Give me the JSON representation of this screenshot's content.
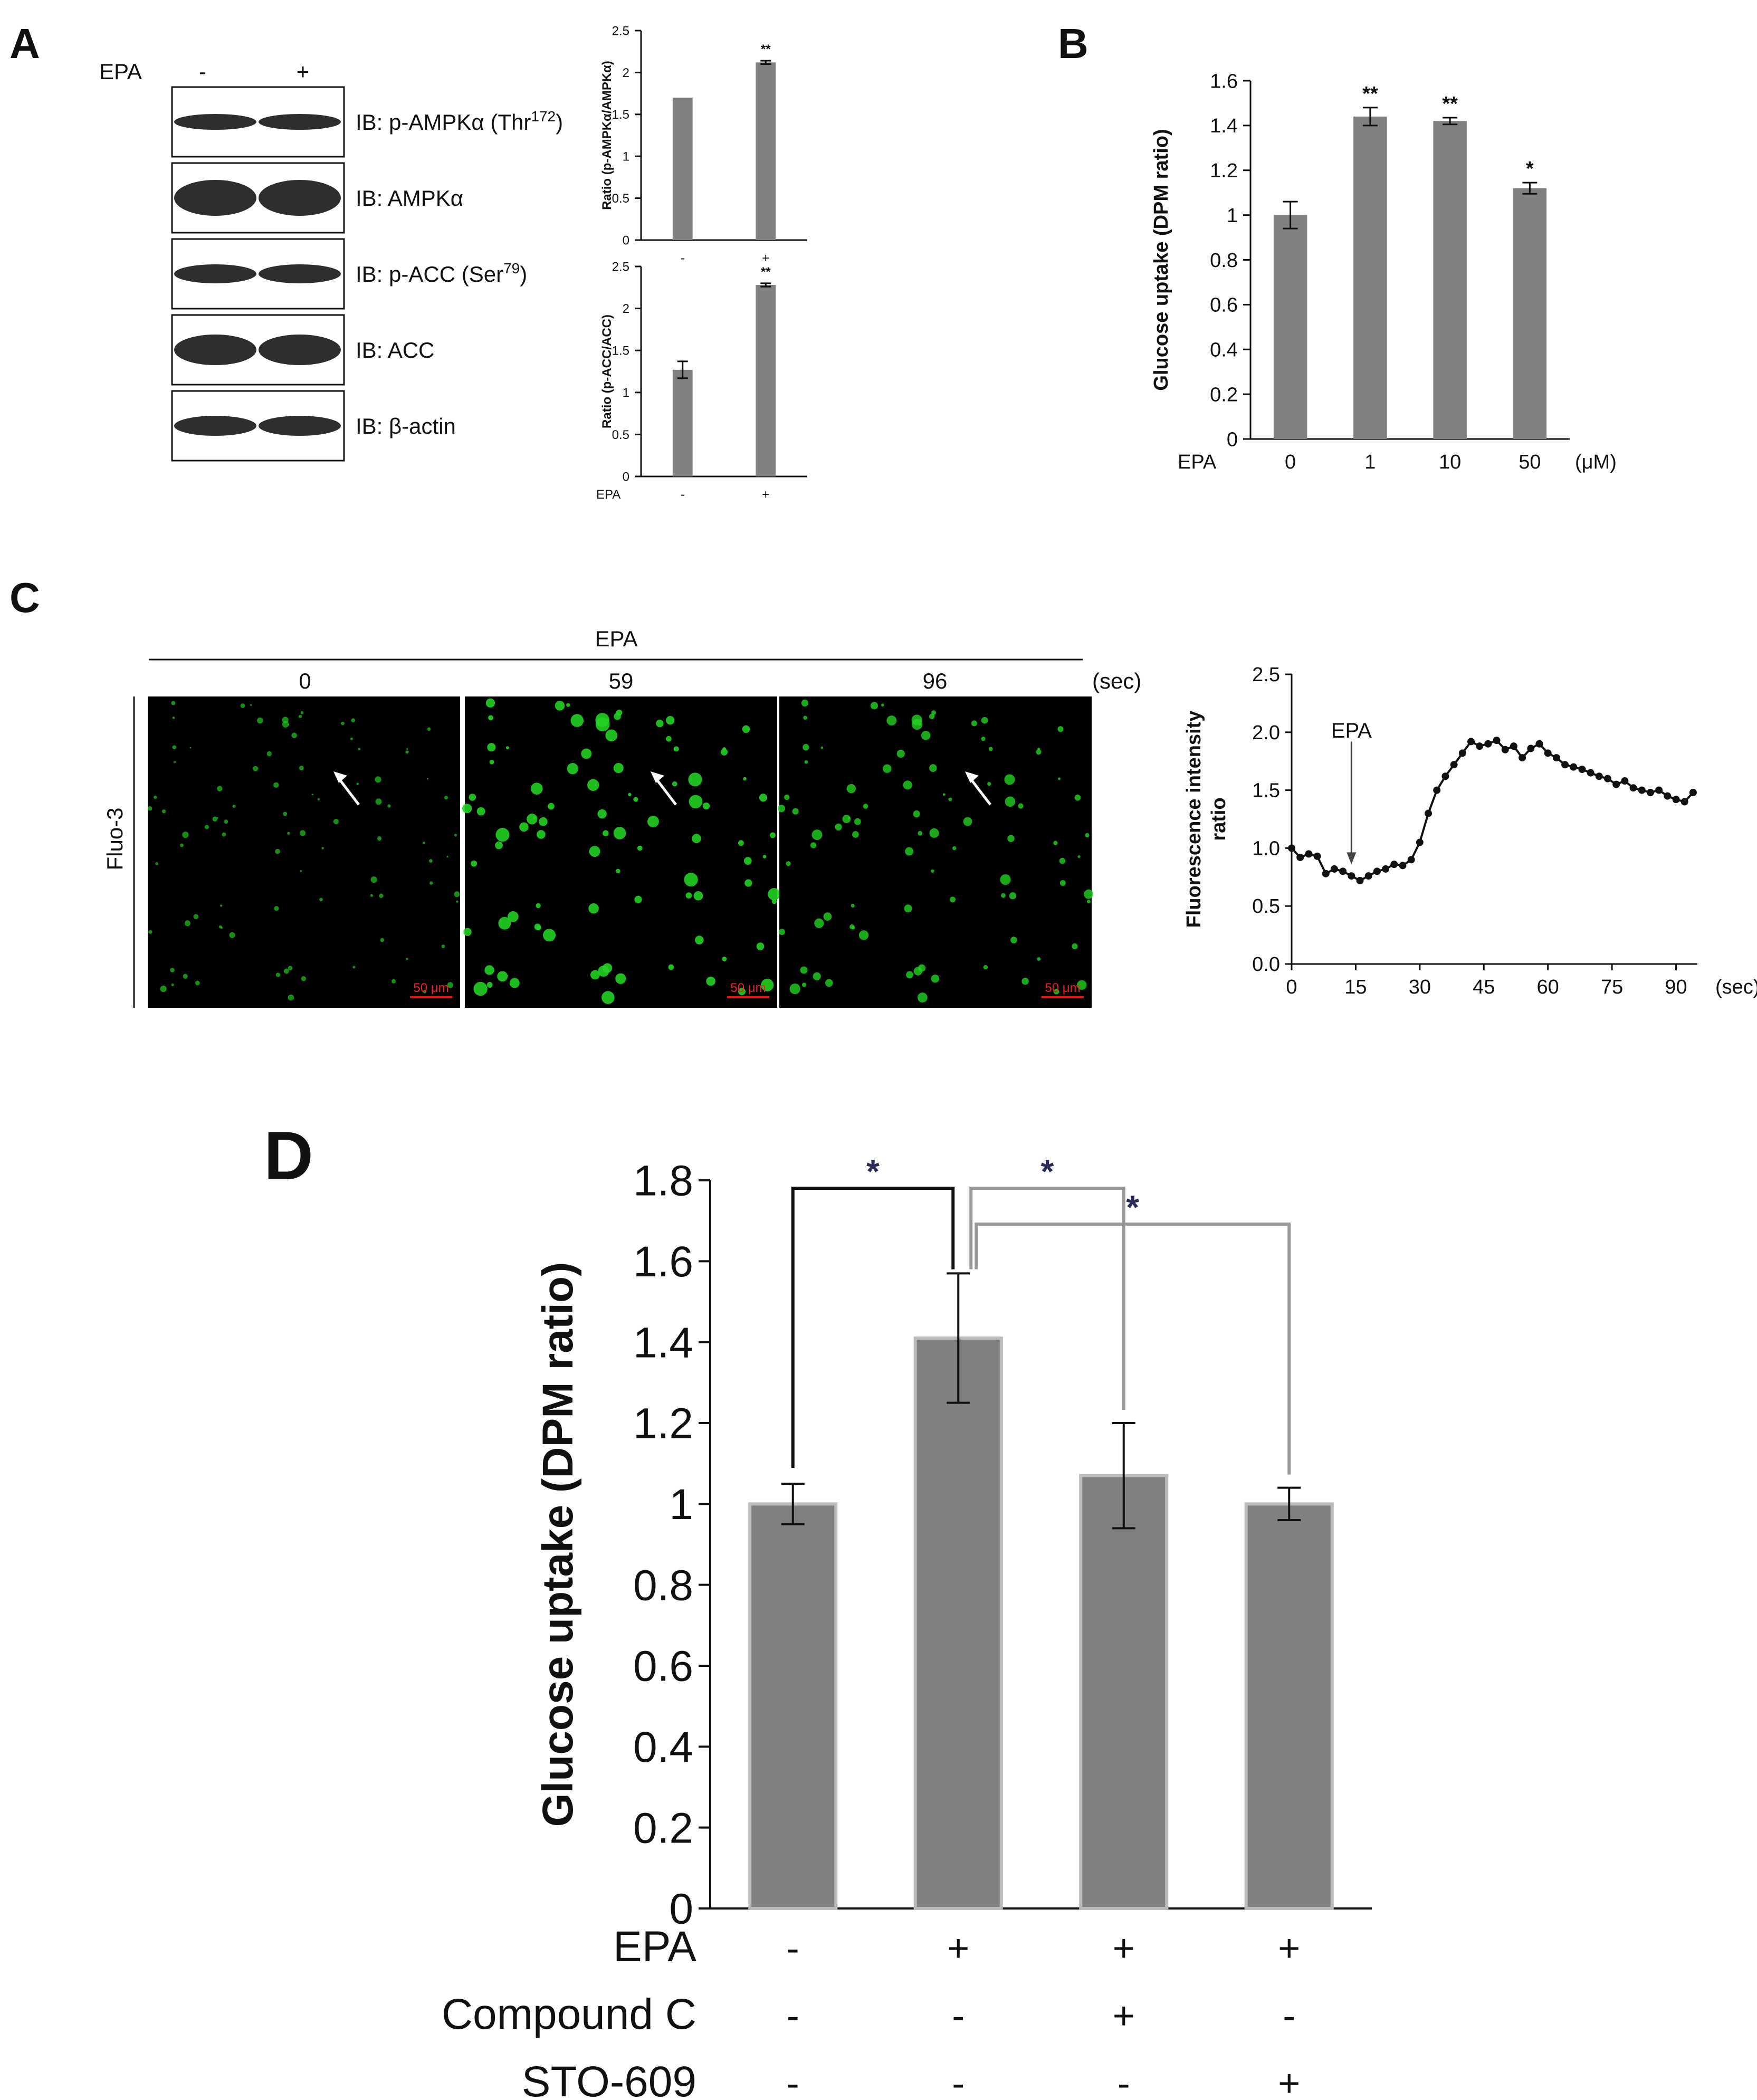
{
  "panels": {
    "a": "A",
    "b": "B",
    "c": "C",
    "d": "D"
  },
  "panel_a": {
    "epa_label": "EPA",
    "lane_labels": [
      "-",
      "+"
    ],
    "blots": [
      "IB: p-AMPKα (Thr172)",
      "IB: AMPKα",
      "IB: p-ACC (Ser79)",
      "IB: ACC",
      "IB: β-actin"
    ]
  },
  "panel_c": {
    "epa_label": "EPA",
    "times": [
      "0",
      "59",
      "96"
    ],
    "time_unit": "(sec)",
    "dye": "Fluo-3",
    "scale_bar": "50 μm"
  },
  "chart_data": [
    {
      "id": "A1",
      "type": "bar",
      "ylabel": "Ratio (p-AMPKα/AMPKα)",
      "categories": [
        "-",
        "+"
      ],
      "values": [
        1.7,
        2.12
      ],
      "errors": [
        0,
        0.02
      ],
      "significance": [
        "",
        "**"
      ],
      "ylim": [
        0,
        2.5
      ],
      "yticks": [
        "0",
        "0.5",
        "1",
        "1.5",
        "2",
        "2.5"
      ]
    },
    {
      "id": "A2",
      "type": "bar",
      "ylabel": "Ratio (p-ACC/ACC)",
      "xlabel": "EPA",
      "categories": [
        "-",
        "+"
      ],
      "values": [
        1.27,
        2.28
      ],
      "errors": [
        0.1,
        0.02
      ],
      "significance": [
        "",
        "**"
      ],
      "ylim": [
        0,
        2.5
      ],
      "yticks": [
        "0",
        "0.5",
        "1",
        "1.5",
        "2",
        "2.5"
      ]
    },
    {
      "id": "B",
      "type": "bar",
      "ylabel": "Glucose uptake (DPM ratio)",
      "xlabel": "EPA",
      "x_unit": "(μM)",
      "categories": [
        "0",
        "1",
        "10",
        "50"
      ],
      "values": [
        1.0,
        1.44,
        1.42,
        1.12
      ],
      "errors": [
        0.06,
        0.04,
        0.015,
        0.025
      ],
      "significance": [
        "",
        "**",
        "**",
        "*"
      ],
      "ylim": [
        0,
        1.6
      ],
      "yticks": [
        "0",
        "0.2",
        "0.4",
        "0.6",
        "0.8",
        "1",
        "1.2",
        "1.4",
        "1.6"
      ]
    },
    {
      "id": "C",
      "type": "line",
      "ylabel": "Fluorescence intensity ratio",
      "x_unit": "(sec)",
      "annotation": "EPA",
      "annotation_x": 14,
      "xlim": [
        0,
        95
      ],
      "ylim": [
        0,
        2.5
      ],
      "xticks": [
        "0",
        "15",
        "30",
        "45",
        "60",
        "75",
        "90"
      ],
      "yticks": [
        "0.0",
        "0.5",
        "1.0",
        "1.5",
        "2.0",
        "2.5"
      ],
      "x": [
        0,
        2,
        4,
        6,
        8,
        10,
        12,
        14,
        16,
        18,
        20,
        22,
        24,
        26,
        28,
        30,
        32,
        34,
        36,
        38,
        40,
        42,
        44,
        46,
        48,
        50,
        52,
        54,
        56,
        58,
        60,
        62,
        64,
        66,
        68,
        70,
        72,
        74,
        76,
        78,
        80,
        82,
        84,
        86,
        88,
        90,
        92,
        94
      ],
      "y": [
        1.0,
        0.92,
        0.95,
        0.93,
        0.78,
        0.82,
        0.8,
        0.76,
        0.72,
        0.76,
        0.8,
        0.82,
        0.86,
        0.85,
        0.9,
        1.05,
        1.3,
        1.5,
        1.62,
        1.72,
        1.82,
        1.92,
        1.88,
        1.9,
        1.93,
        1.85,
        1.88,
        1.78,
        1.86,
        1.9,
        1.82,
        1.78,
        1.72,
        1.7,
        1.68,
        1.65,
        1.62,
        1.6,
        1.55,
        1.58,
        1.52,
        1.5,
        1.48,
        1.5,
        1.45,
        1.42,
        1.4,
        1.48
      ]
    },
    {
      "id": "D",
      "type": "bar",
      "ylabel": "Glucose uptake (DPM ratio)",
      "row_labels": [
        "EPA",
        "Compound C",
        "STO-609"
      ],
      "treatments": [
        [
          "-",
          "+",
          "+",
          "+"
        ],
        [
          "-",
          "-",
          "+",
          "-"
        ],
        [
          "-",
          "-",
          "-",
          "+"
        ]
      ],
      "values": [
        1.0,
        1.41,
        1.07,
        1.0
      ],
      "errors": [
        0.05,
        0.16,
        0.13,
        0.04
      ],
      "ylim": [
        0,
        1.8
      ],
      "yticks": [
        "0",
        "0.2",
        "0.4",
        "0.6",
        "0.8",
        "1",
        "1.2",
        "1.4",
        "1.6",
        "1.8"
      ],
      "comparisons": [
        {
          "from": 0,
          "to": 1,
          "label": "*"
        },
        {
          "from": 1,
          "to": 2,
          "label": "*"
        },
        {
          "from": 1,
          "to": 3,
          "label": "*"
        }
      ]
    }
  ]
}
